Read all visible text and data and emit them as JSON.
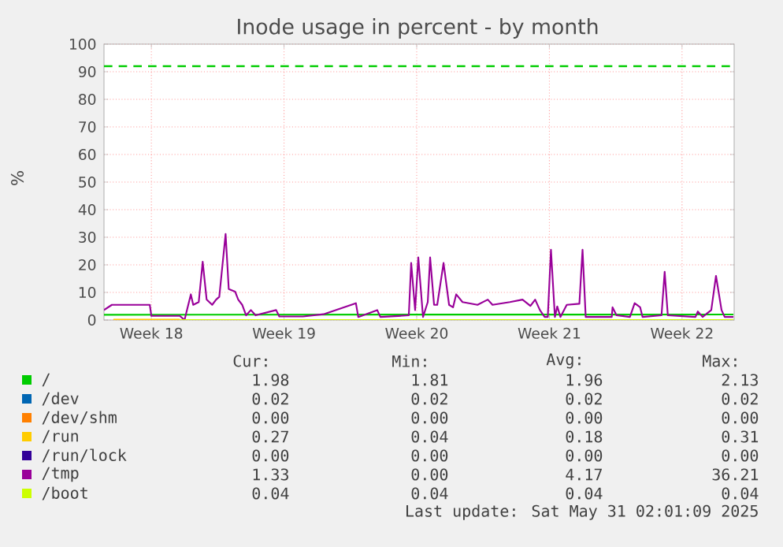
{
  "chart_data": {
    "type": "line",
    "title": "Inode usage in percent - by month",
    "ylabel": "%",
    "xlim": [
      "2025-04-29T00:00",
      "2025-06-01T06:00"
    ],
    "ylim": [
      0,
      100
    ],
    "xticks": [
      {
        "value": "2025-05-01T12:00",
        "label": "Week 18"
      },
      {
        "value": "2025-05-08T12:00",
        "label": "Week 19"
      },
      {
        "value": "2025-05-15T12:00",
        "label": "Week 20"
      },
      {
        "value": "2025-05-22T12:00",
        "label": "Week 21"
      },
      {
        "value": "2025-05-29T12:00",
        "label": "Week 22"
      }
    ],
    "yticks": [
      0,
      10,
      20,
      30,
      40,
      50,
      60,
      70,
      80,
      90,
      100
    ],
    "grid": true,
    "legend": "bottom",
    "ref_lines": [
      {
        "axis": "y",
        "value": 92,
        "color": "#00cc00",
        "line_style": "dashed"
      }
    ],
    "series": [
      {
        "name": "/",
        "color": "#00cc00",
        "x": [
          "2025-04-29T00:00",
          "2025-06-01T05:00"
        ],
        "values": [
          1.9,
          2.0
        ]
      },
      {
        "name": "/dev",
        "color": "#0066b3"
      },
      {
        "name": "/dev/shm",
        "color": "#ff8000"
      },
      {
        "name": "/run",
        "color": "#ffcc00",
        "x": [
          "2025-04-29T12:00",
          "2025-05-03T00:00"
        ],
        "values": [
          0.2,
          0.2
        ]
      },
      {
        "name": "/run/lock",
        "color": "#330099"
      },
      {
        "name": "/tmp",
        "color": "#990099",
        "x": [
          "2025-04-29T00:00",
          "2025-04-29T10:00",
          "2025-05-01T10:00",
          "2025-05-01T12:00",
          "2025-05-03T00:00",
          "2025-05-03T06:00",
          "2025-05-03T14:00",
          "2025-05-03T17:00",
          "2025-05-04T00:00",
          "2025-05-04T05:00",
          "2025-05-04T10:00",
          "2025-05-04T17:00",
          "2025-05-04T22:00",
          "2025-05-05T02:00",
          "2025-05-05T10:00",
          "2025-05-05T14:00",
          "2025-05-05T22:00",
          "2025-05-06T02:00",
          "2025-05-06T07:00",
          "2025-05-06T12:00",
          "2025-05-06T18:00",
          "2025-05-07T00:00",
          "2025-05-08T02:00",
          "2025-05-08T06:00",
          "2025-05-09T12:00",
          "2025-05-10T14:00",
          "2025-05-12T07:00",
          "2025-05-12T10:00",
          "2025-05-13T10:00",
          "2025-05-13T14:00",
          "2025-05-15T02:00",
          "2025-05-15T05:00",
          "2025-05-15T10:00",
          "2025-05-15T14:00",
          "2025-05-15T20:00",
          "2025-05-16T02:00",
          "2025-05-16T05:00",
          "2025-05-16T10:00",
          "2025-05-16T14:00",
          "2025-05-16T22:00",
          "2025-05-17T05:00",
          "2025-05-17T10:00",
          "2025-05-17T14:00",
          "2025-05-17T22:00",
          "2025-05-18T17:00",
          "2025-05-19T06:00",
          "2025-05-19T12:00",
          "2025-05-20T10:00",
          "2025-05-21T02:00",
          "2025-05-21T12:00",
          "2025-05-21T18:00",
          "2025-05-22T00:00",
          "2025-05-22T06:00",
          "2025-05-22T10:00",
          "2025-05-22T14:00",
          "2025-05-22T19:00",
          "2025-05-22T22:00",
          "2025-05-23T02:00",
          "2025-05-23T10:00",
          "2025-05-24T02:00",
          "2025-05-24T06:00",
          "2025-05-24T10:00",
          "2025-05-25T19:00",
          "2025-05-25T20:00",
          "2025-05-26T01:00",
          "2025-05-26T18:00",
          "2025-05-27T00:00",
          "2025-05-27T07:00",
          "2025-05-27T10:00",
          "2025-05-28T10:00",
          "2025-05-28T14:00",
          "2025-05-28T18:00",
          "2025-05-30T05:00",
          "2025-05-30T08:00",
          "2025-05-30T14:00",
          "2025-05-31T01:00",
          "2025-05-31T07:00",
          "2025-05-31T14:00",
          "2025-05-31T18:00",
          "2025-06-01T05:00"
        ],
        "values": [
          3.6,
          5.5,
          5.5,
          1.5,
          1.5,
          0,
          9.3,
          5.5,
          6.5,
          21.1,
          7.4,
          5.5,
          7.4,
          8.4,
          31.2,
          11.2,
          10.3,
          7.4,
          5.5,
          1.7,
          3.6,
          1.7,
          3.6,
          1.3,
          1.3,
          2.1,
          6.1,
          1.1,
          3.6,
          1.1,
          1.7,
          20.7,
          3.6,
          22.7,
          1.1,
          6.5,
          22.7,
          5.5,
          5.5,
          20.7,
          5.5,
          4.6,
          9.3,
          6.5,
          5.5,
          7.4,
          5.5,
          6.5,
          7.4,
          5.1,
          7.4,
          3.6,
          1.1,
          1.1,
          25.5,
          1.1,
          4.9,
          1.1,
          5.5,
          5.9,
          25.5,
          1.1,
          1.1,
          4.6,
          1.7,
          1.1,
          6.1,
          4.6,
          1.1,
          1.7,
          17.5,
          1.7,
          1.1,
          3.1,
          1.1,
          3.6,
          16,
          3.6,
          1.1,
          1.1
        ]
      },
      {
        "name": "/boot",
        "color": "#ccff00",
        "x": [
          "2025-05-03T00:00",
          "2025-06-01T05:00"
        ],
        "values": [
          0,
          0
        ]
      }
    ],
    "annotations": [
      "Cur:",
      "Min:",
      "Avg:",
      "Max:",
      "1.98",
      "1.81",
      "1.96",
      "2.13",
      "0.02",
      "0.02",
      "0.02",
      "0.02",
      "0.00",
      "0.00",
      "0.00",
      "0.00",
      "0.27",
      "0.04",
      "0.18",
      "0.31",
      "0.00",
      "0.00",
      "0.00",
      "0.00",
      "1.33",
      "0.00",
      "4.17",
      "36.21",
      "0.04",
      "0.04",
      "0.04",
      "0.04",
      "Last update: Sat May 31 02:01:09 2025"
    ]
  }
}
